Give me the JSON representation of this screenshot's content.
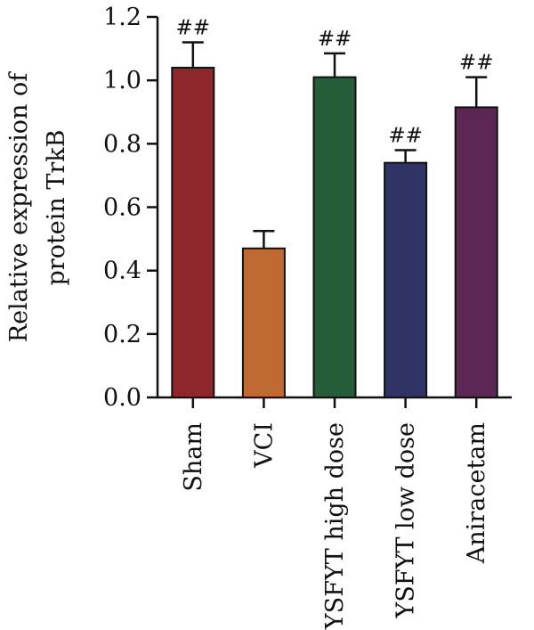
{
  "chart_data": {
    "type": "bar",
    "ylabel": "Relative expression of protein TrkB",
    "ylabel_lines": [
      "Relative expression of",
      "protein TrkB"
    ],
    "categories": [
      "Sham",
      "VCI",
      "YSFYT high dose",
      "YSFYT low dose",
      "Aniracetam"
    ],
    "values": [
      1.04,
      0.47,
      1.01,
      0.74,
      0.915
    ],
    "errors": [
      0.08,
      0.055,
      0.075,
      0.04,
      0.095
    ],
    "annotations": [
      "##",
      "",
      "##",
      "##",
      "##"
    ],
    "colors": [
      "#8E272C",
      "#BF6A33",
      "#245D37",
      "#2F3464",
      "#5C2753"
    ],
    "ylim": [
      0,
      1.2
    ],
    "yticks": [
      "0.0",
      "0.2",
      "0.4",
      "0.6",
      "0.8",
      "1.0",
      "1.2"
    ],
    "grid": false,
    "legend": false
  }
}
